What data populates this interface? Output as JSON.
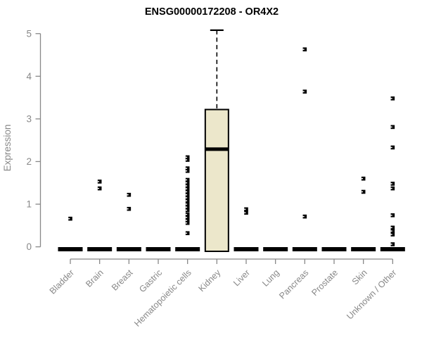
{
  "title": "ENSG00000172208 - OR4X2",
  "colors": {
    "background": "#ffffff",
    "axis": "#888888",
    "ink": "#000000",
    "box_fill": "#ECE7CB"
  },
  "chart_data": {
    "type": "box",
    "title": "ENSG00000172208 - OR4X2",
    "xlabel": "",
    "ylabel": "Expression",
    "ylim": [
      0,
      5
    ],
    "yticks": [
      0,
      1,
      2,
      3,
      4,
      5
    ],
    "grid": false,
    "legend": "none",
    "categories": [
      "Bladder",
      "Brain",
      "Breast",
      "Gastric",
      "Hematopoietic cells",
      "Kidney",
      "Liver",
      "Lung",
      "Pancreas",
      "Prostate",
      "Skin",
      "Unknown / Other"
    ],
    "series": [
      {
        "name": "Bladder",
        "q1": 0,
        "median": 0,
        "q3": 0,
        "whisker_low": 0,
        "whisker_high": 0,
        "outliers": [
          0.66
        ]
      },
      {
        "name": "Brain",
        "q1": 0,
        "median": 0,
        "q3": 0,
        "whisker_low": 0,
        "whisker_high": 0,
        "outliers": [
          1.53,
          1.37
        ]
      },
      {
        "name": "Breast",
        "q1": 0,
        "median": 0,
        "q3": 0,
        "whisker_low": 0,
        "whisker_high": 0,
        "outliers": [
          1.22,
          0.89
        ]
      },
      {
        "name": "Gastric",
        "q1": 0,
        "median": 0,
        "q3": 0,
        "whisker_low": 0,
        "whisker_high": 0,
        "outliers": []
      },
      {
        "name": "Hematopoietic cells",
        "q1": 0,
        "median": 0,
        "q3": 0,
        "whisker_low": 0,
        "whisker_high": 0,
        "outliers": [
          2.1,
          2.04,
          1.84,
          1.78,
          1.57,
          1.5,
          1.43,
          1.36,
          1.29,
          1.22,
          1.15,
          1.08,
          1.0,
          0.93,
          0.86,
          0.76,
          0.69,
          0.62,
          0.56,
          0.32
        ]
      },
      {
        "name": "Kidney",
        "q1": 0,
        "median": 2.29,
        "q3": 3.22,
        "whisker_low": 0,
        "whisker_high": 5.08,
        "outliers": []
      },
      {
        "name": "Liver",
        "q1": 0,
        "median": 0,
        "q3": 0,
        "whisker_low": 0,
        "whisker_high": 0,
        "outliers": [
          0.88,
          0.8
        ]
      },
      {
        "name": "Lung",
        "q1": 0,
        "median": 0,
        "q3": 0,
        "whisker_low": 0,
        "whisker_high": 0,
        "outliers": []
      },
      {
        "name": "Pancreas",
        "q1": 0,
        "median": 0,
        "q3": 0,
        "whisker_low": 0,
        "whisker_high": 0,
        "outliers": [
          4.63,
          3.64,
          0.71
        ]
      },
      {
        "name": "Prostate",
        "q1": 0,
        "median": 0,
        "q3": 0,
        "whisker_low": 0,
        "whisker_high": 0,
        "outliers": []
      },
      {
        "name": "Skin",
        "q1": 0,
        "median": 0,
        "q3": 0,
        "whisker_low": 0,
        "whisker_high": 0,
        "outliers": [
          1.6,
          1.29
        ]
      },
      {
        "name": "Unknown / Other",
        "q1": 0,
        "median": 0,
        "q3": 0,
        "whisker_low": 0,
        "whisker_high": 0,
        "outliers": [
          3.48,
          2.81,
          2.33,
          1.48,
          1.37,
          0.74,
          0.45,
          0.37,
          0.29,
          0.06
        ]
      }
    ]
  }
}
